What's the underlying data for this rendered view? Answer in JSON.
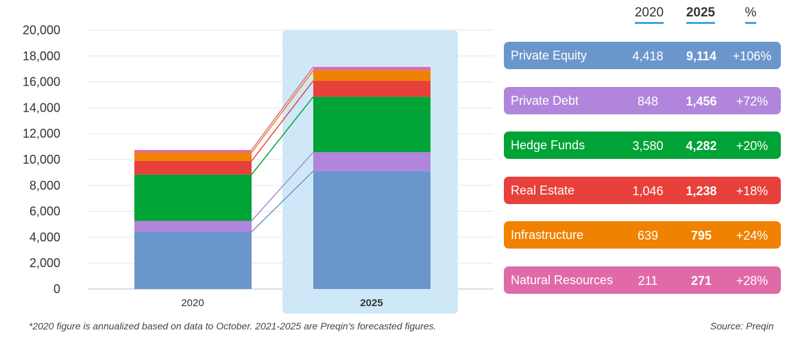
{
  "chart_data": {
    "type": "bar",
    "stacked": true,
    "categories": [
      "2020",
      "2025"
    ],
    "highlight_category": "2025",
    "ylim": [
      0,
      20000
    ],
    "yticks": [
      "0",
      "2,000",
      "4,000",
      "6,000",
      "8,000",
      "10,000",
      "12,000",
      "14,000",
      "16,000",
      "18,000",
      "20,000"
    ],
    "grid": true,
    "series": [
      {
        "name": "Private Equity",
        "values": [
          4418,
          9114
        ],
        "pct": "+106%",
        "color": "#6b96cc",
        "display": [
          "4,418",
          "9,114"
        ]
      },
      {
        "name": "Private Debt",
        "values": [
          848,
          1456
        ],
        "pct": "+72%",
        "color": "#b085db",
        "display": [
          "848",
          "1,456"
        ]
      },
      {
        "name": "Hedge Funds",
        "values": [
          3580,
          4282
        ],
        "pct": "+20%",
        "color": "#00a336",
        "display": [
          "3,580",
          "4,282"
        ]
      },
      {
        "name": "Real Estate",
        "values": [
          1046,
          1238
        ],
        "pct": "+18%",
        "color": "#e8403a",
        "display": [
          "1,046",
          "1,238"
        ]
      },
      {
        "name": "Infrastructure",
        "values": [
          639,
          795
        ],
        "pct": "+24%",
        "color": "#f08200",
        "display": [
          "639",
          "795"
        ]
      },
      {
        "name": "Natural Resources",
        "values": [
          211,
          271
        ],
        "pct": "+28%",
        "color": "#e06aa8",
        "display": [
          "211",
          "271"
        ]
      }
    ]
  },
  "table_headers": {
    "y2020": "2020",
    "y2025": "2025",
    "pct": "%"
  },
  "colors": {
    "highlight_band": "#cfe8f7",
    "header_underline": "#3aa9e0"
  },
  "footnote": "*2020 figure is annualized based on data to October. 2021-2025 are Preqin's forecasted figures.",
  "source": "Source: Preqin"
}
